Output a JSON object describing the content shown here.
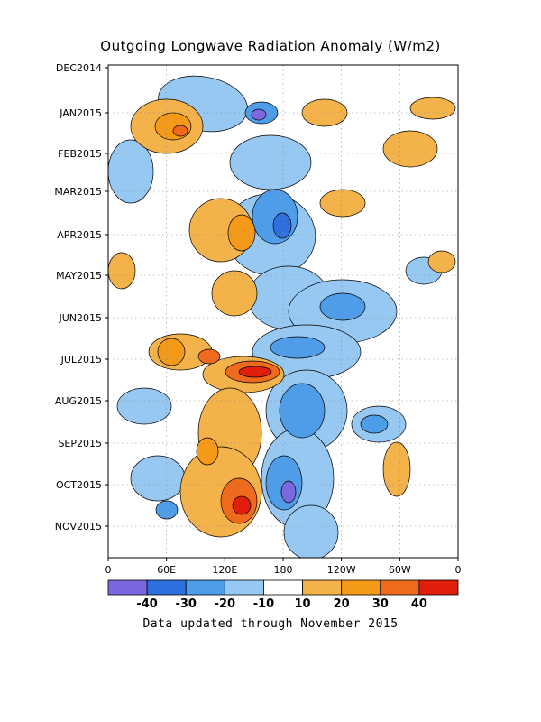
{
  "chart_data": {
    "type": "heatmap",
    "title": "Outgoing Longwave Radiation Anomaly (W/m2)",
    "footer": "Data updated through November 2015",
    "x_ticks": [
      "0",
      "60E",
      "120E",
      "180",
      "120W",
      "60W",
      "0"
    ],
    "y_ticks": [
      "DEC2014",
      "JAN2015",
      "FEB2015",
      "MAR2015",
      "APR2015",
      "MAY2015",
      "JUN2015",
      "JUL2015",
      "AUG2015",
      "SEP2015",
      "OCT2015",
      "NOV2015"
    ],
    "grid": true,
    "colorbar": {
      "ticks": [
        "-40",
        "-30",
        "-20",
        "-10",
        "10",
        "20",
        "30",
        "40"
      ],
      "colors": [
        "#7b68e0",
        "#2e6fe0",
        "#4f9de9",
        "#96c8f2",
        "#ffffff",
        "#f4b24a",
        "#f59a18",
        "#ef6a1c",
        "#e11d0b"
      ]
    }
  }
}
